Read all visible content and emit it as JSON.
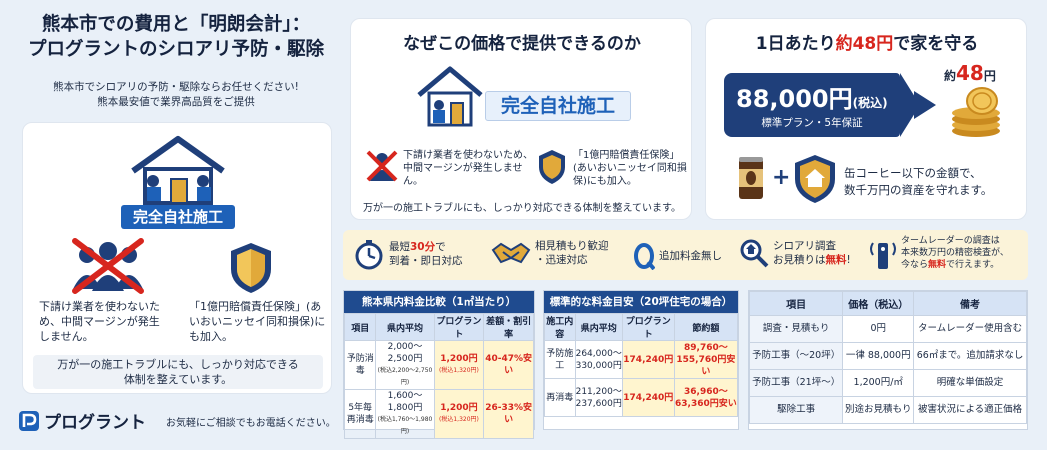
{
  "left": {
    "title_line1": "熊本市での費用と「明朗会計」：",
    "title_line2": "プログラントのシロアリ予防・駆除",
    "sub_line1": "熊本市でシロアリの予防・駆除ならお任せください!",
    "sub_line2": "熊本最安値で業界高品質をご提供",
    "badge": "完全自社施工",
    "text1": "下請け業者を使わないため、中間マージンが発生しません。",
    "text2": "「1億円賠償責任保険」(あいおいニッセイ同和損保)にも加入。",
    "bottom_line1": "万が一の施工トラブルにも、しっかり対応できる",
    "bottom_line2": "体制を整えています。"
  },
  "logo": {
    "name": "プログラント",
    "tagline": "お気軽にご相談でもお電話ください。"
  },
  "middle": {
    "title": "なぜこの価格で提供できるのか",
    "badge": "完全自社施工",
    "text1": "下請け業者を使わないため、中間マージンが発生しません。",
    "text2": "「1億円賠償責任保険」(あいおいニッセイ同和損保)にも加入。",
    "bottom": "万が一の施工トラブルにも、しっかり対応できる体制を整えています。"
  },
  "right": {
    "title_pre": "1日あたり",
    "title_red": "約48円",
    "title_post": "で家を守る",
    "price": "88,000円",
    "price_tax": "(税込)",
    "price_sub": "標準プラン・5年保証",
    "approx_pre": "約",
    "approx_num": "48",
    "approx_unit": "円",
    "text_line1": "缶コーヒー以下の金額で、",
    "text_line2": "数千万円の資産を守れます。"
  },
  "features": {
    "f1_pre": "最短",
    "f1_red": "30分",
    "f1_post": "で",
    "f1_line2": "到着・即日対応",
    "f2_line1": "相見積もり歓迎",
    "f2_line2": "・迅速対応",
    "f3": "追加料金無し",
    "f4_line1": "シロアリ調査",
    "f4_line2_pre": "お見積りは",
    "f4_line2_red": "無料",
    "f4_line2_post": "!",
    "f5_line1": "タームレーダーの調査は",
    "f5_line2": "本来数万円の精密検査が、",
    "f5_line3_pre": "今なら",
    "f5_line3_red": "無料",
    "f5_line3_post": "で行えます。"
  },
  "table1": {
    "title": "熊本県内料金比較（1㎡当たり）",
    "headers": [
      "項目",
      "県内平均",
      "プログラント",
      "差額・割引率"
    ],
    "rows": [
      {
        "item": "予防消毒",
        "avg_line1": "2,000〜",
        "avg_line2": "2,500円",
        "avg_note": "(税込2,200〜2,750円)",
        "price": "1,200円",
        "price_note": "(税込1,320円)",
        "save": "40-47%安い"
      },
      {
        "item_line1": "5年毎",
        "item_line2": "再消毒",
        "avg_line1": "1,600〜",
        "avg_line2": "1,800円",
        "avg_note": "(税込1,760〜1,980円)",
        "price": "1,200円",
        "price_note": "(税込1,320円)",
        "save": "26-33%安い"
      }
    ]
  },
  "table2": {
    "title": "標準的な料金目安（20坪住宅の場合）",
    "headers": [
      "施工内容",
      "県内平均",
      "プログラント",
      "節約額"
    ],
    "rows": [
      {
        "item": "予防施工",
        "avg_line1": "264,000〜",
        "avg_line2": "330,000円",
        "price": "174,240円",
        "save_line1": "89,760〜",
        "save_line2": "155,760円安い"
      },
      {
        "item": "再消毒",
        "avg_line1": "211,200〜",
        "avg_line2": "237,600円",
        "price": "174,240円",
        "save_line1": "36,960〜",
        "save_line2": "63,360円安い"
      }
    ]
  },
  "table3": {
    "headers": [
      "項目",
      "価格（税込）",
      "備考"
    ],
    "rows": [
      {
        "item": "調査・見積もり",
        "price": "0円",
        "note": "タームレーダー使用含む"
      },
      {
        "item": "予防工事（〜20坪）",
        "price": "一律 88,000円",
        "note": "66㎡まで。追加請求なし"
      },
      {
        "item": "予防工事（21坪〜）",
        "price": "1,200円/㎡",
        "note": "明確な単価設定"
      },
      {
        "item": "駆除工事",
        "price": "別途お見積もり",
        "note": "被害状況による適正価格"
      }
    ]
  },
  "colors": {
    "navy": "#1f3f7a",
    "blue": "#1e61b8",
    "red": "#d7261e",
    "gold": "#e1a93a",
    "cream": "#fbf3d9"
  },
  "icons": [
    "house-worker-icon",
    "no-subcontractor-icon",
    "shield-icon",
    "price-tag-icon",
    "arrow-right-icon",
    "coins-icon",
    "coffee-can-icon",
    "shield-house-icon",
    "stopwatch-icon",
    "handshake-icon",
    "zero-yen-icon",
    "magnifier-house-icon",
    "radar-icon",
    "logo-icon"
  ]
}
